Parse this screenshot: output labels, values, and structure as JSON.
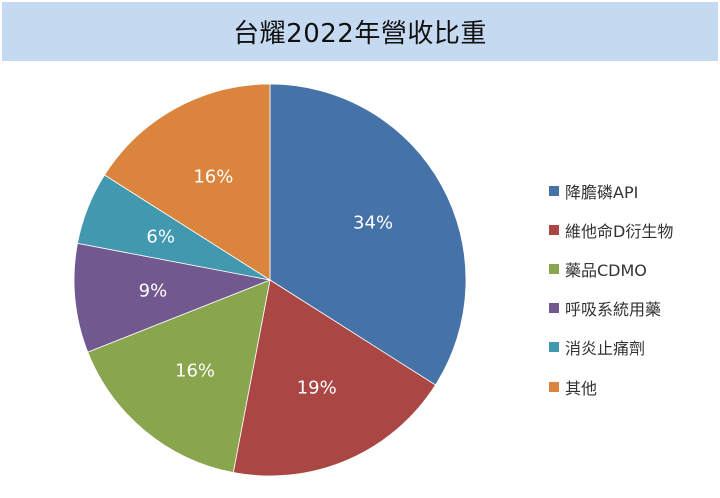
{
  "header": {
    "title": "台耀2022年營收比重"
  },
  "chart_data": {
    "type": "pie",
    "title": "台耀2022年營收比重",
    "categories": [
      "降膽磷API",
      "維他命D衍生物",
      "藥品CDMO",
      "呼吸系統用藥",
      "消炎止痛劑",
      "其他"
    ],
    "values": [
      34,
      19,
      16,
      9,
      6,
      16
    ],
    "labels": [
      "34%",
      "19%",
      "16%",
      "9%",
      "6%",
      "16%"
    ],
    "colors": [
      "#4572a7",
      "#aa4643",
      "#89a54e",
      "#71588f",
      "#4198af",
      "#db843d"
    ],
    "start_angle": "12 o'clock, clockwise",
    "legend_position": "right"
  },
  "legend": {
    "items": [
      {
        "label": "降膽磷API",
        "color": "#4572a7"
      },
      {
        "label": "維他命D衍生物",
        "color": "#aa4643"
      },
      {
        "label": "藥品CDMO",
        "color": "#89a54e"
      },
      {
        "label": "呼吸系統用藥",
        "color": "#71588f"
      },
      {
        "label": "消炎止痛劑",
        "color": "#4198af"
      },
      {
        "label": "其他",
        "color": "#db843d"
      }
    ]
  }
}
